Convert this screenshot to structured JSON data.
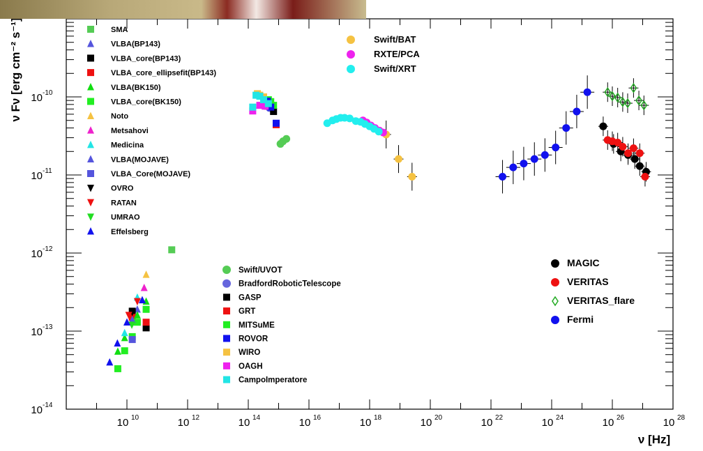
{
  "chart_data": {
    "type": "scatter",
    "xscale": "log",
    "yscale": "log",
    "xlim": [
      100000000.0,
      1e+28
    ],
    "ylim": [
      1e-14,
      1e-09
    ],
    "xlabel": "ν [Hz]",
    "ylabel": "ν Fν [erg cm⁻² s⁻¹]",
    "xticks": [
      {
        "exp": 10,
        "label": "10"
      },
      {
        "exp": 12,
        "label": "10"
      },
      {
        "exp": 14,
        "label": "10"
      },
      {
        "exp": 16,
        "label": "10"
      },
      {
        "exp": 18,
        "label": "10"
      },
      {
        "exp": 20,
        "label": "10"
      },
      {
        "exp": 22,
        "label": "10"
      },
      {
        "exp": 24,
        "label": "10"
      },
      {
        "exp": 26,
        "label": "10"
      },
      {
        "exp": 28,
        "label": "10"
      }
    ],
    "yticks": [
      {
        "exp": -14,
        "label": "10"
      },
      {
        "exp": -13,
        "label": "10"
      },
      {
        "exp": -12,
        "label": "10"
      },
      {
        "exp": -11,
        "label": "10"
      },
      {
        "exp": -10,
        "label": "10"
      }
    ],
    "grid": false,
    "series": [
      {
        "name": "SMA",
        "marker": "square",
        "color": "#55cc55",
        "points": [
          [
            300000000000.0,
            1.1e-12
          ]
        ]
      },
      {
        "name": "VLBA(BP143)",
        "marker": "triangle",
        "color": "#5555dd",
        "points": [
          [
            22000000000.0,
            1.9e-13
          ]
        ]
      },
      {
        "name": "VLBA_core(BP143)",
        "marker": "square",
        "color": "#000000",
        "points": [
          [
            15000000000.0,
            1.8e-13
          ],
          [
            43000000000.0,
            1.1e-13
          ]
        ]
      },
      {
        "name": "VLBA_core_ellipsefit(BP143)",
        "marker": "square",
        "color": "#ee1111",
        "points": [
          [
            15000000000.0,
            1.5e-13
          ],
          [
            43000000000.0,
            1.3e-13
          ]
        ]
      },
      {
        "name": "VLBA(BK150)",
        "marker": "triangle",
        "color": "#11dd11",
        "points": [
          [
            5000000000.0,
            5.5e-14
          ],
          [
            8400000000.0,
            8.2e-14
          ],
          [
            15000000000.0,
            1.3e-13
          ],
          [
            22000000000.0,
            1.6e-13
          ],
          [
            43000000000.0,
            2.4e-13
          ]
        ]
      },
      {
        "name": "VLBA_core(BK150)",
        "marker": "square",
        "color": "#22ee22",
        "points": [
          [
            5000000000.0,
            3.3e-14
          ],
          [
            8400000000.0,
            5.6e-14
          ],
          [
            15000000000.0,
            8.5e-14
          ],
          [
            22000000000.0,
            1.3e-13
          ],
          [
            43000000000.0,
            1.9e-13
          ]
        ]
      },
      {
        "name": "Noto",
        "marker": "triangle",
        "color": "#f5c242",
        "points": [
          [
            43000000000.0,
            5.3e-13
          ]
        ]
      },
      {
        "name": "Metsahovi",
        "marker": "triangle",
        "color": "#ee22cc",
        "points": [
          [
            37000000000.0,
            3.6e-13
          ]
        ]
      },
      {
        "name": "Medicina",
        "marker": "triangle",
        "color": "#22e5e5",
        "points": [
          [
            8400000000.0,
            9.5e-14
          ],
          [
            22000000000.0,
            2.7e-13
          ]
        ]
      },
      {
        "name": "VLBA(MOJAVE)",
        "marker": "triangle",
        "color": "#5555dd",
        "points": [
          [
            15000000000.0,
            1.4e-13
          ]
        ]
      },
      {
        "name": "VLBA_Core(MOJAVE)",
        "marker": "square",
        "color": "#5555dd",
        "points": [
          [
            15000000000.0,
            7.8e-14
          ]
        ]
      },
      {
        "name": "OVRO",
        "marker": "invtriangle",
        "color": "#000000",
        "points": [
          [
            15000000000.0,
            1.75e-13
          ]
        ]
      },
      {
        "name": "RATAN",
        "marker": "invtriangle",
        "color": "#ee1111",
        "points": [
          [
            22000000000.0,
            2.4e-13
          ],
          [
            11500000000.0,
            1.6e-13
          ]
        ]
      },
      {
        "name": "UMRAO",
        "marker": "invtriangle",
        "color": "#22dd22",
        "points": [
          [
            14500000000.0,
            1.2e-13
          ]
        ]
      },
      {
        "name": "Effelsberg",
        "marker": "triangle",
        "color": "#1111ee",
        "points": [
          [
            2700000000.0,
            4e-14
          ],
          [
            4850000000.0,
            7e-14
          ],
          [
            10000000000.0,
            1.3e-13
          ],
          [
            32000000000.0,
            2.5e-13
          ]
        ]
      },
      {
        "name": "Swift/BAT",
        "marker": "circle",
        "color": "#f5c242",
        "points": [
          [
            3.5e+18,
            3.3e-11
          ],
          [
            9e+18,
            1.6e-11
          ],
          [
            2.5e+19,
            9.5e-12
          ]
        ]
      },
      {
        "name": "RXTE/PCA",
        "marker": "circle",
        "color": "#ee22ee",
        "points": [
          [
            6e+17,
            5e-11
          ],
          [
            8e+17,
            4.7e-11
          ],
          [
            1.1e+18,
            4.3e-11
          ],
          [
            1.5e+18,
            4e-11
          ],
          [
            2.1e+18,
            3.7e-11
          ],
          [
            2.8e+18,
            3.5e-11
          ]
        ]
      },
      {
        "name": "Swift/XRT",
        "marker": "circle",
        "color": "#22eeee",
        "points": [
          [
            4e+16,
            4.6e-11
          ],
          [
            6e+16,
            5e-11
          ],
          [
            8e+16,
            5.2e-11
          ],
          [
            1.1e+17,
            5.4e-11
          ],
          [
            1.5e+17,
            5.4e-11
          ],
          [
            2.2e+17,
            5.3e-11
          ],
          [
            3.5e+17,
            4.9e-11
          ],
          [
            5e+17,
            4.8e-11
          ],
          [
            7e+17,
            4.5e-11
          ],
          [
            1e+18,
            4.2e-11
          ],
          [
            1.4e+18,
            3.9e-11
          ],
          [
            2e+18,
            3.6e-11
          ]
        ]
      },
      {
        "name": "Swift/UVOT",
        "marker": "circle",
        "color": "#55cc55",
        "points": [
          [
            1150000000000000.0,
            2.5e-11
          ],
          [
            1400000000000000.0,
            2.7e-11
          ],
          [
            1800000000000000.0,
            2.9e-11
          ]
        ]
      },
      {
        "name": "BradfordRoboticTelescope",
        "marker": "circle",
        "color": "#6666dd",
        "points": [
          [
            500000000000000.0,
            7.2e-11
          ]
        ]
      },
      {
        "name": "GASP",
        "marker": "square",
        "color": "#000000",
        "points": [
          [
            460000000000000.0,
            7.8e-11
          ],
          [
            680000000000000.0,
            6.5e-11
          ]
        ]
      },
      {
        "name": "GRT",
        "marker": "square",
        "color": "#ee1111",
        "points": [
          [
            430000000000000.0,
            7.6e-11
          ],
          [
            830000000000000.0,
            4.4e-11
          ]
        ]
      },
      {
        "name": "MITSuME",
        "marker": "square",
        "color": "#22ee22",
        "points": [
          [
            460000000000000.0,
            9.2e-11
          ],
          [
            550000000000000.0,
            8.7e-11
          ],
          [
            680000000000000.0,
            7.8e-11
          ]
        ]
      },
      {
        "name": "ROVOR",
        "marker": "square",
        "color": "#1111ee",
        "points": [
          [
            430000000000000.0,
            8.8e-11
          ],
          [
            550000000000000.0,
            7.4e-11
          ],
          [
            830000000000000.0,
            4.6e-11
          ]
        ]
      },
      {
        "name": "WIRO",
        "marker": "square",
        "color": "#f5c242",
        "points": [
          [
            200000000000000.0,
            1.1e-10
          ],
          [
            240000000000000.0,
            1.05e-10
          ],
          [
            320000000000000.0,
            1e-10
          ]
        ]
      },
      {
        "name": "OAGH",
        "marker": "square",
        "color": "#ee22ee",
        "points": [
          [
            140000000000000.0,
            6.6e-11
          ],
          [
            240000000000000.0,
            7.8e-11
          ],
          [
            360000000000000.0,
            7.6e-11
          ]
        ]
      },
      {
        "name": "CampoImperatore",
        "marker": "square",
        "color": "#22e5e5",
        "points": [
          [
            140000000000000.0,
            7.4e-11
          ],
          [
            180000000000000.0,
            1.05e-10
          ],
          [
            240000000000000.0,
            1.02e-10
          ],
          [
            320000000000000.0,
            9.2e-11
          ],
          [
            460000000000000.0,
            8.2e-11
          ]
        ]
      },
      {
        "name": "MAGIC",
        "marker": "circle",
        "color": "#000000",
        "points": [
          [
            5e+25,
            4.2e-11
          ],
          [
            1.1e+26,
            2.5e-11
          ],
          [
            1.9e+26,
            2e-11
          ],
          [
            3.3e+26,
            1.8e-11
          ],
          [
            5.5e+26,
            1.6e-11
          ],
          [
            8e+26,
            1.3e-11
          ],
          [
            1.3e+27,
            1.1e-11
          ]
        ]
      },
      {
        "name": "VERITAS",
        "marker": "circle",
        "color": "#ee1111",
        "points": [
          [
            7e+25,
            2.8e-11
          ],
          [
            1e+26,
            2.7e-11
          ],
          [
            1.5e+26,
            2.6e-11
          ],
          [
            2.2e+26,
            2.3e-11
          ],
          [
            3.3e+26,
            1.9e-11
          ],
          [
            5e+26,
            2.2e-11
          ],
          [
            8e+26,
            1.9e-11
          ],
          [
            1.2e+27,
            9.5e-12
          ]
        ]
      },
      {
        "name": "VERITAS_flare",
        "marker": "diamond",
        "color": "#22aa22",
        "points": [
          [
            7e+25,
            1.15e-10
          ],
          [
            1e+26,
            1.02e-10
          ],
          [
            1.5e+26,
            9.8e-11
          ],
          [
            2.2e+26,
            8.6e-11
          ],
          [
            3.2e+26,
            8.3e-11
          ],
          [
            5e+26,
            1.3e-10
          ],
          [
            7.5e+26,
            9e-11
          ],
          [
            1.1e+27,
            7.8e-11
          ]
        ]
      },
      {
        "name": "Fermi",
        "marker": "circle",
        "color": "#1111ee",
        "points": [
          [
            2.4e+22,
            9.5e-12
          ],
          [
            5.4e+22,
            1.25e-11
          ],
          [
            1.2e+23,
            1.4e-11
          ],
          [
            2.7e+23,
            1.6e-11
          ],
          [
            6e+23,
            1.8e-11
          ],
          [
            1.35e+24,
            2.25e-11
          ],
          [
            3e+24,
            4e-11
          ],
          [
            6.7e+24,
            6.5e-11
          ],
          [
            1.5e+25,
            1.15e-10
          ]
        ]
      }
    ]
  }
}
